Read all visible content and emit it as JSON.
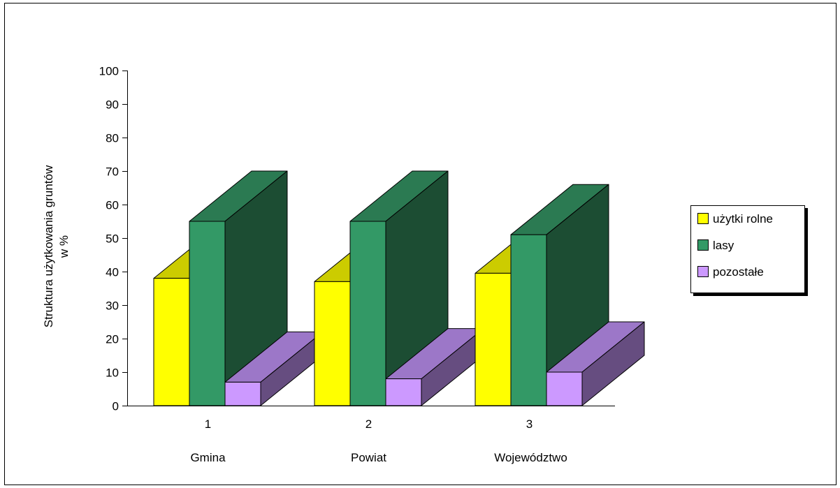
{
  "chart_data": {
    "type": "bar",
    "title": "",
    "ylabel_lines": [
      "Struktura użytkowania gruntów",
      "w %"
    ],
    "categories": [
      "1",
      "2",
      "3"
    ],
    "category_names": [
      "Gmina",
      "Powiat",
      "Województwo"
    ],
    "ylim": [
      0,
      100
    ],
    "yticks": [
      "0",
      "10",
      "20",
      "30",
      "40",
      "50",
      "60",
      "70",
      "80",
      "90",
      "100"
    ],
    "grid": false,
    "legend_position": "right",
    "series": [
      {
        "name": "użytki rolne",
        "values": [
          38,
          37,
          39.5
        ],
        "color": "#ffff00",
        "top_color": "#cccc00",
        "side_color": "#999900"
      },
      {
        "name": "lasy",
        "values": [
          55,
          55,
          51
        ],
        "color": "#339966",
        "top_color": "#2b7a52",
        "side_color": "#1c4d33"
      },
      {
        "name": "pozostałe",
        "values": [
          7,
          8,
          10
        ],
        "color": "#cc99ff",
        "top_color": "#9c77c8",
        "side_color": "#664d80"
      }
    ]
  }
}
